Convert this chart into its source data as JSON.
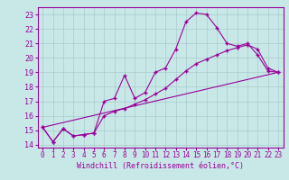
{
  "title": "",
  "xlabel": "Windchill (Refroidissement éolien,°C)",
  "ylabel": "",
  "bg_color": "#c8e8e8",
  "line_color": "#990099",
  "xlim": [
    -0.5,
    23.5
  ],
  "ylim": [
    13.8,
    23.5
  ],
  "yticks": [
    14,
    15,
    16,
    17,
    18,
    19,
    20,
    21,
    22,
    23
  ],
  "xticks": [
    0,
    1,
    2,
    3,
    4,
    5,
    6,
    7,
    8,
    9,
    10,
    11,
    12,
    13,
    14,
    15,
    16,
    17,
    18,
    19,
    20,
    21,
    22,
    23
  ],
  "line1_x": [
    0,
    1,
    2,
    3,
    4,
    5,
    6,
    7,
    8,
    9,
    10,
    11,
    12,
    13,
    14,
    15,
    16,
    17,
    18,
    19,
    20,
    21,
    22,
    23
  ],
  "line1_y": [
    15.2,
    14.2,
    15.1,
    14.6,
    14.7,
    14.8,
    17.0,
    17.2,
    18.8,
    17.2,
    17.6,
    19.0,
    19.3,
    20.6,
    22.5,
    23.1,
    23.0,
    22.1,
    21.0,
    20.8,
    21.0,
    20.2,
    19.1,
    19.0
  ],
  "line2_x": [
    0,
    1,
    2,
    3,
    4,
    5,
    6,
    7,
    8,
    9,
    10,
    11,
    12,
    13,
    14,
    15,
    16,
    17,
    18,
    19,
    20,
    21,
    22,
    23
  ],
  "line2_y": [
    15.2,
    14.2,
    15.1,
    14.6,
    14.7,
    14.8,
    16.0,
    16.3,
    16.5,
    16.8,
    17.1,
    17.5,
    17.9,
    18.5,
    19.1,
    19.6,
    19.9,
    20.2,
    20.5,
    20.7,
    20.9,
    20.6,
    19.3,
    19.0
  ],
  "line3_x": [
    0,
    23
  ],
  "line3_y": [
    15.2,
    19.0
  ],
  "grid_color": "#aacccc",
  "marker": "+"
}
